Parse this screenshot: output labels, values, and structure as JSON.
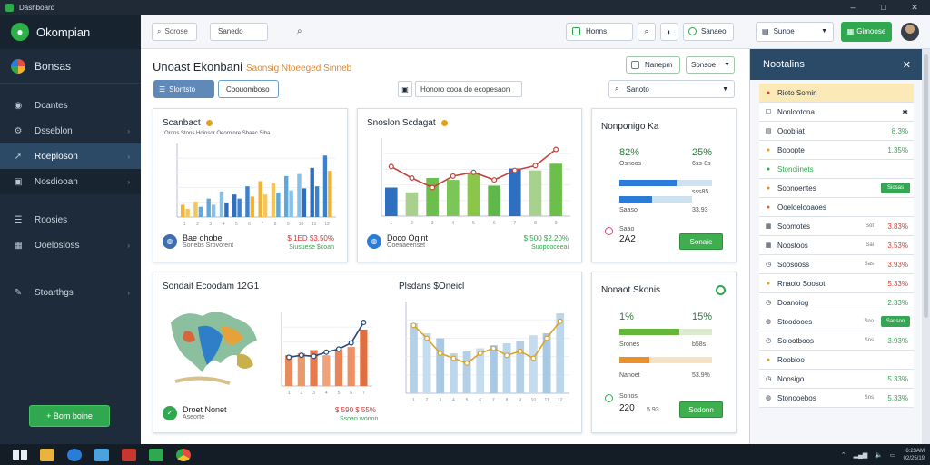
{
  "window": {
    "title": "Dashboard",
    "min": "–",
    "max": "□",
    "close": "✕"
  },
  "sidebar": {
    "brand": "Okompian",
    "workspace": "Bonsas",
    "items": [
      {
        "label": "Dcantes",
        "icon": "dashboard-icon"
      },
      {
        "label": "Dsseblon",
        "icon": "gear-icon"
      },
      {
        "label": "Roeploson",
        "icon": "rocket-icon",
        "active": true
      },
      {
        "label": "Nosdiooan",
        "icon": "reports-icon"
      },
      {
        "label": "Roosies",
        "icon": "list-icon"
      },
      {
        "label": "Ooelosloss",
        "icon": "grid-icon"
      },
      {
        "label": "Stoarthgs",
        "icon": "settings-icon"
      }
    ],
    "action_button": "+ Bom boine"
  },
  "topbar": {
    "search_label": "Sorose",
    "field_label": "Sanedo",
    "field_green": "Honns",
    "field2": "Sanaeo",
    "select_label": "Sunpe",
    "green_button": "Gimoose"
  },
  "main": {
    "title": "Unoast Ekonbani",
    "subtitle": "Saonsig Ntoeeged Sinneb",
    "head_btn1": "Nanepm",
    "head_btn2": "Sonsoe",
    "tab_active": "Slontsto",
    "tab_inactive": "Cbouomboso",
    "filter_label": "Honoro cooa do ecopesaon",
    "search_placeholder": "Sanoto"
  },
  "cards": {
    "bar_card": {
      "title": "Scanbact",
      "legend": "Orons  Stons  Hoinsor  Oeornlnre  Sbaac  Siba",
      "foot_title": "Bae ohobe",
      "foot_sub": "Sonebs Srovorent",
      "foot_val": "$ 1ED $3.50%",
      "foot_val2": "Siusuese $coan"
    },
    "line_card": {
      "title": "Snoslon Scdagat",
      "foot_title": "Doco Ogint",
      "foot_sub": "Ooenaeenset",
      "foot_val": "$ 500 $2.20%",
      "foot_val2": "Suopooceeai"
    },
    "kpi_card1": {
      "title": "Nonponigo Ka",
      "pct_a": "82%",
      "pct_b": "25%",
      "lbl_a": "Osnoos",
      "lbl_b": "6ss-8s",
      "row1_val": "sss85",
      "row2_lbl": "Saaso",
      "row2_val": "33.93",
      "row3_lbl": "Saao",
      "row3_val": "2A2",
      "button": "Sonaie",
      "bar1": 0.62,
      "bar2": 0.45
    },
    "map_card": {
      "title": "Sondait Ecoodam 12G1",
      "foot_title": "Droet Nonet",
      "foot_sub": "Aseorte",
      "foot_val": "$ 590 $ 55%",
      "foot_val2": "Ssoan wonon"
    },
    "line_card2": {
      "title": "Plsdans $Oneicl"
    },
    "kpi_card2": {
      "title": "Nonaot Skonis",
      "pct_a": "1%",
      "pct_b": "15%",
      "lbl_a": "Srones",
      "lbl_b": "b58s",
      "row2_lbl": "Nanoet",
      "row2_val": "53.9%",
      "row3_lbl": "Sonos",
      "row3_val": "220",
      "row4_val": "5.93",
      "button": "Sodonn",
      "bar1": 0.65,
      "bar2": 0.32
    }
  },
  "chart_data": [
    {
      "type": "bar",
      "title": "Scanbact",
      "categories": [
        "1",
        "2",
        "3",
        "4",
        "5",
        "6",
        "7",
        "8",
        "9",
        "10",
        "11",
        "12"
      ],
      "series": [
        {
          "name": "A",
          "values": [
            12,
            15,
            18,
            25,
            22,
            30,
            35,
            33,
            40,
            42,
            48,
            60
          ]
        },
        {
          "name": "B",
          "values": [
            8,
            10,
            12,
            14,
            18,
            20,
            22,
            24,
            26,
            28,
            30,
            45
          ]
        }
      ],
      "ylim": [
        0,
        70
      ]
    },
    {
      "type": "bar",
      "title": "Snoslon Scdagat",
      "categories": [
        "1",
        "2",
        "3",
        "4",
        "5",
        "6",
        "7",
        "8",
        "9"
      ],
      "values": [
        30,
        25,
        40,
        38,
        45,
        32,
        50,
        48,
        55
      ],
      "line": [
        52,
        40,
        30,
        42,
        46,
        38,
        48,
        53,
        70
      ],
      "ylim": [
        0,
        80
      ]
    },
    {
      "type": "bar",
      "title": "Sondait Ecoodam 12G1",
      "categories": [
        "1",
        "2",
        "3",
        "4",
        "5",
        "6",
        "7"
      ],
      "values": [
        30,
        32,
        35,
        30,
        36,
        38,
        55
      ],
      "line": [
        28,
        30,
        29,
        33,
        36,
        42,
        62
      ],
      "ylim": [
        0,
        70
      ]
    },
    {
      "type": "bar",
      "title": "Plsdans $Oneicl",
      "categories": [
        "1",
        "2",
        "3",
        "4",
        "5",
        "6",
        "7",
        "8",
        "9",
        "10",
        "11",
        "12"
      ],
      "values": [
        70,
        60,
        55,
        40,
        42,
        45,
        48,
        50,
        52,
        58,
        60,
        80
      ],
      "line": [
        68,
        55,
        40,
        35,
        30,
        40,
        45,
        38,
        42,
        35,
        55,
        72
      ],
      "ylim": [
        0,
        90
      ]
    }
  ],
  "panel": {
    "title": "Nootalins",
    "close": "✕",
    "rows": [
      {
        "label": "Rioto Somin",
        "icon": "alert-icon",
        "highlight": true,
        "iconColor": "#d93c2c"
      },
      {
        "label": "Nonlootona",
        "icon": "checkbox-icon",
        "val": "",
        "extra": "chev"
      },
      {
        "label": "Ooobiiat",
        "icon": "clipboard-icon",
        "val": "8.3%",
        "valColor": "#2fa84f"
      },
      {
        "label": "Booopte",
        "icon": "dot-icon",
        "val": "1.35%",
        "valColor": "#2fa84f",
        "iconColor": "#e0a21b"
      },
      {
        "label": "Stonoiinets",
        "icon": "dot-icon",
        "val": "",
        "iconColor": "#2fa84f",
        "green_text": true
      },
      {
        "label": "Soonoentes",
        "icon": "dot-icon",
        "btn": "Siosas",
        "iconColor": "#e08a2c"
      },
      {
        "label": "Ooeloelooaoes",
        "icon": "dot-icon",
        "val": "",
        "iconColor": "#e0602c"
      },
      {
        "label": "Soomotes",
        "icon": "grid-icon",
        "tag": "Sot",
        "val": "3.83%",
        "valColor": "#d93c2c"
      },
      {
        "label": "Noostoos",
        "icon": "grid-icon",
        "tag": "Sai",
        "val": "3.53%",
        "valColor": "#d93c2c"
      },
      {
        "label": "Soosooss",
        "icon": "clock-icon",
        "tag": "Sas",
        "val": "3.93%",
        "valColor": "#d93c2c"
      },
      {
        "label": "Rnaoio Soosot",
        "icon": "dot-icon",
        "val": "5.33%",
        "valColor": "#d93c2c",
        "iconColor": "#e0a21b"
      },
      {
        "label": "Doanoiog",
        "icon": "clock-icon",
        "val": "2.33%",
        "valColor": "#2fa84f"
      },
      {
        "label": "Stoodooes",
        "icon": "shield-icon",
        "tag": "Sno",
        "btn": "Sansoo"
      },
      {
        "label": "Solootboos",
        "icon": "clock-icon",
        "tag": "Sns",
        "val": "3.93%",
        "valColor": "#2fa84f"
      },
      {
        "label": "Roobioo",
        "icon": "dot-icon",
        "val": "",
        "iconColor": "#e0a21b"
      },
      {
        "label": "Noosigo",
        "icon": "clock-icon",
        "tag": "",
        "val": "5.33%",
        "valColor": "#2fa84f"
      },
      {
        "label": "Stonooebos",
        "icon": "shield-icon",
        "tag": "Sns",
        "val": "5.33%",
        "valColor": "#2fa84f"
      }
    ]
  },
  "taskbar": {
    "time": "6:23AM",
    "date": "02/25/19"
  },
  "colors": {
    "accent": "#2fa84f",
    "sidebar": "#1d2b3a",
    "panel_head": "#2b4a68"
  }
}
